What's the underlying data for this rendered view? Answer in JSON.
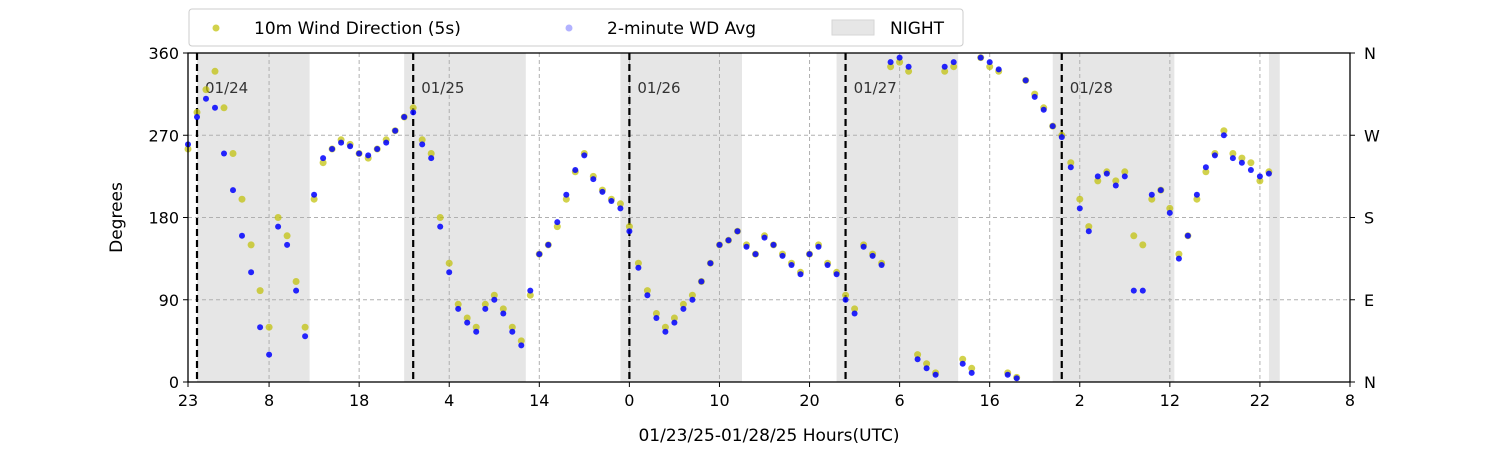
{
  "chart_data": {
    "type": "scatter",
    "title": "",
    "xlabel": "01/23/25-01/28/25  Hours(UTC)",
    "ylabel": "Degrees",
    "ylim": [
      0,
      360
    ],
    "xlim_hours": [
      0,
      129
    ],
    "x_tick_labels": [
      "23",
      "8",
      "18",
      "4",
      "14",
      "0",
      "10",
      "20",
      "6",
      "16",
      "2",
      "12",
      "22",
      "8"
    ],
    "x_tick_hours": [
      0,
      9,
      19,
      29,
      39,
      49,
      59,
      69,
      79,
      89,
      99,
      109,
      119,
      129
    ],
    "y_ticks": [
      0,
      90,
      180,
      270,
      360
    ],
    "right_axis_labels": [
      "N",
      "E",
      "S",
      "W",
      "N"
    ],
    "grid": true,
    "legend_position": "top",
    "legend": [
      {
        "label": "10m Wind Direction (5s)",
        "color": "#bfbf00",
        "kind": "marker"
      },
      {
        "label": "2-minute WD Avg",
        "color": "#0000ff",
        "kind": "marker"
      },
      {
        "label": "NIGHT",
        "color": "#e6e6e6",
        "kind": "patch"
      }
    ],
    "day_markers": [
      {
        "label": "01/24",
        "hour": 1
      },
      {
        "label": "01/25",
        "hour": 25
      },
      {
        "label": "01/26",
        "hour": 49
      },
      {
        "label": "01/27",
        "hour": 73
      },
      {
        "label": "01/28",
        "hour": 97
      }
    ],
    "night_periods_hours": [
      [
        1,
        13.5
      ],
      [
        24,
        37.5
      ],
      [
        48,
        61.5
      ],
      [
        72,
        85.5
      ],
      [
        96,
        109.5
      ],
      [
        120,
        121.2
      ]
    ],
    "series": [
      {
        "name": "10m Wind Direction (5s)",
        "color": "#bfbf00",
        "points": [
          [
            0,
            255
          ],
          [
            1,
            295
          ],
          [
            2,
            320
          ],
          [
            3,
            340
          ],
          [
            4,
            300
          ],
          [
            5,
            250
          ],
          [
            6,
            200
          ],
          [
            7,
            150
          ],
          [
            8,
            100
          ],
          [
            9,
            60
          ],
          [
            10,
            180
          ],
          [
            11,
            160
          ],
          [
            12,
            110
          ],
          [
            13,
            60
          ],
          [
            14,
            200
          ],
          [
            15,
            240
          ],
          [
            16,
            255
          ],
          [
            17,
            265
          ],
          [
            18,
            260
          ],
          [
            19,
            250
          ],
          [
            20,
            245
          ],
          [
            21,
            255
          ],
          [
            22,
            265
          ],
          [
            23,
            275
          ],
          [
            24,
            290
          ],
          [
            25,
            300
          ],
          [
            26,
            265
          ],
          [
            27,
            250
          ],
          [
            28,
            180
          ],
          [
            29,
            130
          ],
          [
            30,
            85
          ],
          [
            31,
            70
          ],
          [
            32,
            60
          ],
          [
            33,
            85
          ],
          [
            34,
            95
          ],
          [
            35,
            80
          ],
          [
            36,
            60
          ],
          [
            37,
            45
          ],
          [
            38,
            95
          ],
          [
            39,
            140
          ],
          [
            40,
            150
          ],
          [
            41,
            170
          ],
          [
            42,
            200
          ],
          [
            43,
            230
          ],
          [
            44,
            250
          ],
          [
            45,
            225
          ],
          [
            46,
            210
          ],
          [
            47,
            200
          ],
          [
            48,
            195
          ],
          [
            49,
            170
          ],
          [
            50,
            130
          ],
          [
            51,
            100
          ],
          [
            52,
            75
          ],
          [
            53,
            60
          ],
          [
            54,
            70
          ],
          [
            55,
            85
          ],
          [
            56,
            95
          ],
          [
            57,
            110
          ],
          [
            58,
            130
          ],
          [
            59,
            150
          ],
          [
            60,
            155
          ],
          [
            61,
            165
          ],
          [
            62,
            150
          ],
          [
            63,
            140
          ],
          [
            64,
            160
          ],
          [
            65,
            150
          ],
          [
            66,
            140
          ],
          [
            67,
            130
          ],
          [
            68,
            120
          ],
          [
            69,
            140
          ],
          [
            70,
            150
          ],
          [
            71,
            130
          ],
          [
            72,
            120
          ],
          [
            73,
            95
          ],
          [
            74,
            80
          ],
          [
            75,
            150
          ],
          [
            76,
            140
          ],
          [
            77,
            130
          ],
          [
            78,
            345
          ],
          [
            79,
            350
          ],
          [
            80,
            340
          ],
          [
            81,
            30
          ],
          [
            82,
            20
          ],
          [
            83,
            10
          ],
          [
            84,
            340
          ],
          [
            85,
            345
          ],
          [
            86,
            25
          ],
          [
            87,
            15
          ],
          [
            88,
            355
          ],
          [
            89,
            345
          ],
          [
            90,
            340
          ],
          [
            91,
            10
          ],
          [
            92,
            5
          ],
          [
            93,
            330
          ],
          [
            94,
            315
          ],
          [
            95,
            300
          ],
          [
            96,
            280
          ],
          [
            97,
            270
          ],
          [
            98,
            240
          ],
          [
            99,
            200
          ],
          [
            100,
            170
          ],
          [
            101,
            220
          ],
          [
            102,
            230
          ],
          [
            103,
            220
          ],
          [
            104,
            230
          ],
          [
            105,
            160
          ],
          [
            106,
            150
          ],
          [
            107,
            200
          ],
          [
            108,
            210
          ],
          [
            109,
            190
          ],
          [
            110,
            140
          ],
          [
            111,
            160
          ],
          [
            112,
            200
          ],
          [
            113,
            230
          ],
          [
            114,
            250
          ],
          [
            115,
            275
          ],
          [
            116,
            250
          ],
          [
            117,
            245
          ],
          [
            118,
            240
          ],
          [
            119,
            220
          ],
          [
            120,
            230
          ]
        ]
      },
      {
        "name": "2-minute WD Avg",
        "color": "#0000ff",
        "points": [
          [
            0,
            260
          ],
          [
            1,
            290
          ],
          [
            2,
            310
          ],
          [
            3,
            300
          ],
          [
            4,
            250
          ],
          [
            5,
            210
          ],
          [
            6,
            160
          ],
          [
            7,
            120
          ],
          [
            8,
            60
          ],
          [
            9,
            30
          ],
          [
            10,
            170
          ],
          [
            11,
            150
          ],
          [
            12,
            100
          ],
          [
            13,
            50
          ],
          [
            14,
            205
          ],
          [
            15,
            245
          ],
          [
            16,
            255
          ],
          [
            17,
            262
          ],
          [
            18,
            258
          ],
          [
            19,
            250
          ],
          [
            20,
            248
          ],
          [
            21,
            255
          ],
          [
            22,
            262
          ],
          [
            23,
            275
          ],
          [
            24,
            290
          ],
          [
            25,
            295
          ],
          [
            26,
            260
          ],
          [
            27,
            245
          ],
          [
            28,
            170
          ],
          [
            29,
            120
          ],
          [
            30,
            80
          ],
          [
            31,
            65
          ],
          [
            32,
            55
          ],
          [
            33,
            80
          ],
          [
            34,
            90
          ],
          [
            35,
            75
          ],
          [
            36,
            55
          ],
          [
            37,
            40
          ],
          [
            38,
            100
          ],
          [
            39,
            140
          ],
          [
            40,
            150
          ],
          [
            41,
            175
          ],
          [
            42,
            205
          ],
          [
            43,
            232
          ],
          [
            44,
            248
          ],
          [
            45,
            222
          ],
          [
            46,
            208
          ],
          [
            47,
            198
          ],
          [
            48,
            190
          ],
          [
            49,
            165
          ],
          [
            50,
            125
          ],
          [
            51,
            95
          ],
          [
            52,
            70
          ],
          [
            53,
            55
          ],
          [
            54,
            65
          ],
          [
            55,
            80
          ],
          [
            56,
            90
          ],
          [
            57,
            110
          ],
          [
            58,
            130
          ],
          [
            59,
            150
          ],
          [
            60,
            155
          ],
          [
            61,
            165
          ],
          [
            62,
            148
          ],
          [
            63,
            140
          ],
          [
            64,
            158
          ],
          [
            65,
            150
          ],
          [
            66,
            138
          ],
          [
            67,
            128
          ],
          [
            68,
            118
          ],
          [
            69,
            140
          ],
          [
            70,
            148
          ],
          [
            71,
            128
          ],
          [
            72,
            118
          ],
          [
            73,
            90
          ],
          [
            74,
            75
          ],
          [
            75,
            148
          ],
          [
            76,
            138
          ],
          [
            77,
            128
          ],
          [
            78,
            350
          ],
          [
            79,
            355
          ],
          [
            80,
            345
          ],
          [
            81,
            25
          ],
          [
            82,
            15
          ],
          [
            83,
            8
          ],
          [
            84,
            345
          ],
          [
            85,
            350
          ],
          [
            86,
            20
          ],
          [
            87,
            10
          ],
          [
            88,
            355
          ],
          [
            89,
            350
          ],
          [
            90,
            342
          ],
          [
            91,
            8
          ],
          [
            92,
            4
          ],
          [
            93,
            330
          ],
          [
            94,
            312
          ],
          [
            95,
            298
          ],
          [
            96,
            280
          ],
          [
            97,
            268
          ],
          [
            98,
            235
          ],
          [
            99,
            190
          ],
          [
            100,
            165
          ],
          [
            101,
            225
          ],
          [
            102,
            228
          ],
          [
            103,
            215
          ],
          [
            104,
            225
          ],
          [
            105,
            100
          ],
          [
            106,
            100
          ],
          [
            107,
            205
          ],
          [
            108,
            210
          ],
          [
            109,
            185
          ],
          [
            110,
            135
          ],
          [
            111,
            160
          ],
          [
            112,
            205
          ],
          [
            113,
            235
          ],
          [
            114,
            248
          ],
          [
            115,
            270
          ],
          [
            116,
            245
          ],
          [
            117,
            240
          ],
          [
            118,
            232
          ],
          [
            119,
            225
          ],
          [
            120,
            228
          ]
        ]
      }
    ]
  }
}
